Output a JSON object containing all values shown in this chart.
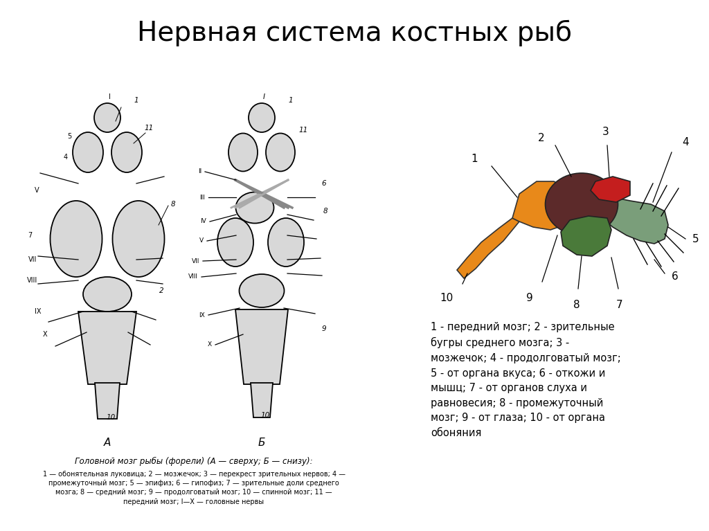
{
  "title": "Нервная система костных рыб",
  "title_fontsize": 28,
  "bg_color": "#ffffff",
  "caption_A": "Головной мозг рыбы (форели) (А — сверху; Б — снизу):",
  "caption_detail": "1 — обонятельная луковица; 2 — мозжечок; 3 — перекрест зрительных нервов; 4 —\nпромежуточный мозг; 5 — эпифиз; 6 — гипофиз; 7 — зрительные доли среднего\nмозга; 8 — средний мозг; 9 — продолговатый мозг; 10 — спинной мозг; 11 —\nпередний мозг; I—X — головные нервы",
  "legend_text": "1 - передний мозг; 2 - зрительные\nбугры среднего мозга; 3 -\nмозжечок; 4 - продолговатый мозг;\n5 - от органа вкуса; 6 - откожи и\nмышц; 7 - от органов слуха и\nравновесия; 8 - промежуточный\nмозг; 9 - от глаза; 10 - от органа\nобоняния",
  "colors": {
    "front_brain": "#E8891A",
    "mid_brain": "#5C2A2A",
    "cerebellum": "#C41E1E",
    "medulla": "#7A9E7A",
    "diencephalon": "#4A7A3A",
    "hatch_color": "#888888"
  }
}
